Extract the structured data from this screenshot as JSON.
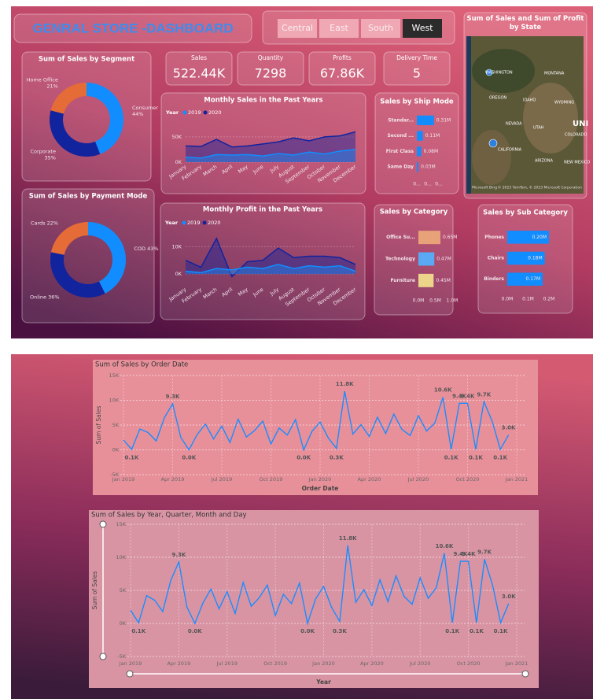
{
  "header": {
    "title": "GENRAL STORE -DASHBOARD"
  },
  "filters": {
    "options": [
      "Central",
      "East",
      "South",
      "West"
    ],
    "selected": 3
  },
  "kpis": [
    {
      "label": "Sales",
      "value": "522.44K"
    },
    {
      "label": "Quantity",
      "value": "7298"
    },
    {
      "label": "Profits",
      "value": "67.86K"
    },
    {
      "label": "Delivery Time",
      "value": "5"
    }
  ],
  "map": {
    "title": "Sum of Sales and Sum of Profit by State",
    "labels": [
      "WASHINGTON",
      "MONTANA",
      "OREGON",
      "IDAHO",
      "WYOMING",
      "NEVADA",
      "UTAH",
      "UNI",
      "COLORADO",
      "CALIFORNIA",
      "ARIZONA",
      "NEW MEXICO"
    ],
    "attribution": "© 2023 TomTom, © 2023 Microsoft Corporation",
    "brand": "Microsoft Bing"
  },
  "chart_data": [
    {
      "type": "pie",
      "title": "Sum of Sales by Segment",
      "categories": [
        "Consumer",
        "Corporate",
        "Home Office"
      ],
      "values": [
        44,
        35,
        21
      ],
      "value_labels": [
        "44%",
        "35%",
        "21%"
      ],
      "colors": [
        "#118dff",
        "#12239e",
        "#e66c37"
      ]
    },
    {
      "type": "pie",
      "title": "Sum of Sales by Payment Mode",
      "categories": [
        "COD",
        "Online",
        "Cards"
      ],
      "values": [
        43,
        36,
        22
      ],
      "value_labels": [
        "COD 43%",
        "Online 36%",
        "Cards 22%"
      ],
      "colors": [
        "#118dff",
        "#12239e",
        "#e66c37"
      ]
    },
    {
      "type": "area",
      "title": "Monthly Sales in the Past Years",
      "legend_title": "Year",
      "categories": [
        "January",
        "February",
        "March",
        "April",
        "May",
        "June",
        "July",
        "August",
        "September",
        "October",
        "November",
        "December"
      ],
      "series": [
        {
          "name": "2019",
          "color": "#118dff",
          "values": [
            10000,
            8000,
            15000,
            14000,
            15000,
            12000,
            17000,
            14000,
            20000,
            16000,
            22000,
            25000
          ]
        },
        {
          "name": "2020",
          "color": "#12239e",
          "values": [
            32000,
            31000,
            45000,
            30000,
            32000,
            36000,
            40000,
            48000,
            42000,
            50000,
            52000,
            60000
          ]
        }
      ],
      "ylim": [
        0,
        70000
      ],
      "yticks": [
        {
          "value": 0,
          "label": "0K"
        },
        {
          "value": 50000,
          "label": "50K"
        }
      ]
    },
    {
      "type": "area",
      "title": "Monthly Profit in the Past Years",
      "legend_title": "Year",
      "categories": [
        "January",
        "February",
        "March",
        "April",
        "May",
        "June",
        "July",
        "August",
        "September",
        "October",
        "November",
        "December"
      ],
      "series": [
        {
          "name": "2019",
          "color": "#118dff",
          "values": [
            1000,
            500,
            2000,
            1500,
            2500,
            2000,
            3500,
            2000,
            3000,
            2500,
            3000,
            1000
          ]
        },
        {
          "name": "2020",
          "color": "#12239e",
          "values": [
            5000,
            2500,
            13000,
            -1000,
            4500,
            5000,
            9500,
            6000,
            6500,
            6500,
            6000,
            3500
          ]
        }
      ],
      "ylim": [
        -4000,
        15000
      ],
      "yticks": [
        {
          "value": 0,
          "label": "0K"
        },
        {
          "value": 10000,
          "label": "10K"
        }
      ]
    },
    {
      "type": "hbar",
      "title": "Sales by Ship Mode",
      "categories": [
        "Standar...",
        "Second ...",
        "First Class",
        "Same Day"
      ],
      "values": [
        0.31,
        0.11,
        0.08,
        0.03
      ],
      "value_labels": [
        "0.31M",
        "0.11M",
        "0.08M",
        "0.03M"
      ],
      "color": "#118dff",
      "xlim": [
        0,
        0.6
      ],
      "xticks": [
        {
          "value": 0,
          "label": "0..."
        },
        {
          "value": 0.2,
          "label": "0..."
        },
        {
          "value": 0.4,
          "label": "0..."
        }
      ]
    },
    {
      "type": "hbar",
      "title": "Sales by Category",
      "categories": [
        "Office Su...",
        "Technology",
        "Furniture"
      ],
      "values": [
        0.65,
        0.47,
        0.45
      ],
      "value_labels": [
        "0.65M",
        "0.47M",
        "0.45M"
      ],
      "colors": [
        "#e8a27a",
        "#5aa9f5",
        "#ecd58a"
      ],
      "xlim": [
        0,
        1
      ],
      "xticks": [
        {
          "value": 0,
          "label": "0.0M"
        },
        {
          "value": 0.5,
          "label": "0.5M"
        },
        {
          "value": 1,
          "label": "1.0M"
        }
      ]
    },
    {
      "type": "hbar",
      "title": "Sales by Sub Category",
      "categories": [
        "Phones",
        "Chairs",
        "Binders"
      ],
      "values": [
        0.2,
        0.18,
        0.17
      ],
      "value_labels": [
        "0.20M",
        "0.18M",
        "0.17M"
      ],
      "color": "#118dff",
      "xlim": [
        0,
        0.2
      ],
      "xticks": [
        {
          "value": 0,
          "label": "0.0M"
        },
        {
          "value": 0.1,
          "label": "0.1M"
        },
        {
          "value": 0.2,
          "label": "0.2M"
        }
      ]
    },
    {
      "type": "line",
      "title": "Sum of Sales by Order Date",
      "x_label": "Order Date",
      "y_label": "Sum of Sales",
      "color": "#1a8cff",
      "grid": true,
      "x": [
        0,
        0.5,
        1,
        1.5,
        2,
        2.5,
        3,
        3.5,
        4,
        4.5,
        5,
        5.5,
        6,
        6.5,
        7,
        7.5,
        8,
        8.5,
        9,
        9.5,
        10,
        10.5,
        11,
        11.5,
        12,
        12.5,
        13,
        13.5,
        14,
        14.5,
        15,
        15.5,
        16,
        16.5,
        17,
        17.5,
        18,
        18.5,
        19,
        19.5,
        20,
        20.5,
        21,
        21.5,
        22,
        22.5,
        23,
        23.5
      ],
      "values": [
        2000,
        100,
        4200,
        3500,
        1800,
        6500,
        9300,
        2500,
        0,
        3100,
        5200,
        2200,
        4800,
        1500,
        6200,
        2600,
        3900,
        5800,
        1200,
        4400,
        3000,
        6100,
        0,
        3700,
        5600,
        2400,
        300,
        11800,
        3200,
        5100,
        2700,
        6600,
        3300,
        7200,
        4100,
        2900,
        6900,
        3800,
        5400,
        10600,
        100,
        9400,
        9400,
        100,
        9700,
        5800,
        100,
        3000
      ],
      "value_labels": [
        null,
        "0.1K",
        null,
        null,
        null,
        null,
        "9.3K",
        null,
        "0.0K",
        null,
        null,
        null,
        null,
        null,
        null,
        null,
        null,
        null,
        null,
        null,
        null,
        null,
        "0.0K",
        null,
        null,
        null,
        "0.3K",
        "11.8K",
        null,
        null,
        null,
        null,
        null,
        null,
        null,
        null,
        null,
        null,
        null,
        "10.6K",
        "0.1K",
        "9.4K",
        "9.4K",
        "0.1K",
        "9.7K",
        null,
        "0.1K",
        "3.0K"
      ],
      "xlim": [
        0,
        24
      ],
      "xticks": [
        {
          "value": 0,
          "label": "Jan 2019"
        },
        {
          "value": 3,
          "label": "Apr 2019"
        },
        {
          "value": 6,
          "label": "Jul 2019"
        },
        {
          "value": 9,
          "label": "Oct 2019"
        },
        {
          "value": 12,
          "label": "Jan 2020"
        },
        {
          "value": 15,
          "label": "Apr 2020"
        },
        {
          "value": 18,
          "label": "Jul 2020"
        },
        {
          "value": 21,
          "label": "Oct 2020"
        },
        {
          "value": 24,
          "label": "Jan 2021"
        }
      ],
      "ylim": [
        -5000,
        15000
      ],
      "yticks": [
        {
          "value": -5000,
          "label": "-5K"
        },
        {
          "value": 0,
          "label": "0K"
        },
        {
          "value": 5000,
          "label": "5K"
        },
        {
          "value": 10000,
          "label": "10K"
        },
        {
          "value": 15000,
          "label": "15K"
        }
      ]
    },
    {
      "type": "line",
      "title": "Sum of Sales by Year, Quarter, Month and Day",
      "x_label": "Year",
      "y_label": "Sum of Sales",
      "color": "#1a8cff",
      "grid": true,
      "x": [
        0,
        0.5,
        1,
        1.5,
        2,
        2.5,
        3,
        3.5,
        4,
        4.5,
        5,
        5.5,
        6,
        6.5,
        7,
        7.5,
        8,
        8.5,
        9,
        9.5,
        10,
        10.5,
        11,
        11.5,
        12,
        12.5,
        13,
        13.5,
        14,
        14.5,
        15,
        15.5,
        16,
        16.5,
        17,
        17.5,
        18,
        18.5,
        19,
        19.5,
        20,
        20.5,
        21,
        21.5,
        22,
        22.5,
        23,
        23.5
      ],
      "values": [
        2000,
        100,
        4200,
        3500,
        1800,
        6500,
        9300,
        2500,
        0,
        3100,
        5200,
        2200,
        4800,
        1500,
        6200,
        2600,
        3900,
        5800,
        1200,
        4400,
        3000,
        6100,
        0,
        3700,
        5600,
        2400,
        300,
        11800,
        3200,
        5100,
        2700,
        6600,
        3300,
        7200,
        4100,
        2900,
        6900,
        3800,
        5400,
        10600,
        100,
        9400,
        9400,
        100,
        9700,
        5800,
        100,
        3000
      ],
      "value_labels": [
        null,
        "0.1K",
        null,
        null,
        null,
        null,
        "9.3K",
        null,
        "0.0K",
        null,
        null,
        null,
        null,
        null,
        null,
        null,
        null,
        null,
        null,
        null,
        null,
        null,
        "0.0K",
        null,
        null,
        null,
        "0.3K",
        "11.8K",
        null,
        null,
        null,
        null,
        null,
        null,
        null,
        null,
        null,
        null,
        null,
        "10.6K",
        "0.1K",
        "9.4K",
        "9.4K",
        "0.1K",
        "9.7K",
        null,
        "0.1K",
        "3.0K"
      ],
      "xlim": [
        0,
        24
      ],
      "xticks": [
        {
          "value": 0,
          "label": "Jan 2019"
        },
        {
          "value": 3,
          "label": "Apr 2019"
        },
        {
          "value": 6,
          "label": "Jul 2019"
        },
        {
          "value": 9,
          "label": "Oct 2019"
        },
        {
          "value": 12,
          "label": "Jan 2020"
        },
        {
          "value": 15,
          "label": "Apr 2020"
        },
        {
          "value": 18,
          "label": "Jul 2020"
        },
        {
          "value": 21,
          "label": "Oct 2020"
        },
        {
          "value": 24,
          "label": "Jan 2021"
        }
      ],
      "ylim": [
        -5000,
        15000
      ],
      "yticks": [
        {
          "value": -5000,
          "label": "-5K"
        },
        {
          "value": 0,
          "label": "0K"
        },
        {
          "value": 5000,
          "label": "5K"
        },
        {
          "value": 10000,
          "label": "10K"
        },
        {
          "value": 15000,
          "label": "15K"
        }
      ]
    }
  ]
}
